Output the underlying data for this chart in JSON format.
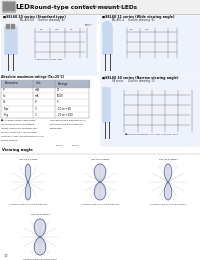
{
  "title_main": "Round-type contact mount LEDs",
  "title_sub": "(for automatic insertion)",
  "bg_color": "#ffffff",
  "section1_title": "■SEL60 10 series (Standard type)",
  "section2_title": "■SEL60 11 series (Wide viewing angle)",
  "section3_title": "■SEL60 10 series (Narrow viewing angle)",
  "table_title": "Absolute maximum ratings (Ta=25°C)",
  "viewing_angle_title": "Viewing angle",
  "polar1_label": "SEL-60 0 series",
  "polar2_label": "SEL-60 H series",
  "polar3_label": "SEL-60 G series",
  "polar4_label": "SEL-60 D series",
  "caption1": "Viewing angle of a non-diffused lens",
  "caption2": "Viewing angle of a non-diffused lens",
  "caption3": "Viewing angle of a non-diffusdlens",
  "caption4": "Viewing angle of a diffused lens",
  "grid_color": "#cccccc",
  "text_color": "#222222",
  "table_header": "#b0b8c8",
  "section_bg": "#eef2fa",
  "led_body_color": "#c8d8f0"
}
